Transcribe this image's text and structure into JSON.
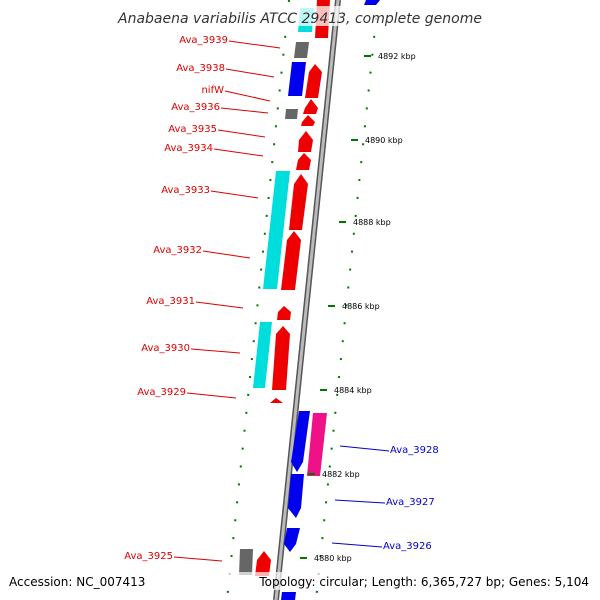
{
  "title": "Anabaena variabilis ATCC 29413, complete genome",
  "footer": {
    "accession": "Accession: NC_007413",
    "topology": "Topology: circular; Length: 6,365,727 bp; Genes: 5,104"
  },
  "colors": {
    "backbone": "#888888",
    "forward_label": "#dd0000",
    "reverse_label": "#0000cc",
    "tick_mark": "#007700",
    "gc_dots": "#007700",
    "red_gene": "#ee0000",
    "cyan_feature": "#00dddd",
    "blue_gene": "#0000ee",
    "grey_gene": "#666666",
    "magenta_feature": "#ee1188"
  },
  "ticks": [
    {
      "label": "4892 kbp"
    },
    {
      "label": "4890 kbp"
    },
    {
      "label": "4888 kbp"
    },
    {
      "label": "4886 kbp"
    },
    {
      "label": "4884 kbp"
    },
    {
      "label": "4882 kbp"
    },
    {
      "label": "4880 kbp"
    }
  ],
  "gene_labels": [
    {
      "text": "Ava_3939",
      "strand": "forward"
    },
    {
      "text": "Ava_3938",
      "strand": "forward"
    },
    {
      "text": "nifW",
      "strand": "forward"
    },
    {
      "text": "Ava_3936",
      "strand": "forward"
    },
    {
      "text": "Ava_3935",
      "strand": "forward"
    },
    {
      "text": "Ava_3934",
      "strand": "forward"
    },
    {
      "text": "Ava_3933",
      "strand": "forward"
    },
    {
      "text": "Ava_3932",
      "strand": "forward"
    },
    {
      "text": "Ava_3931",
      "strand": "forward"
    },
    {
      "text": "Ava_3930",
      "strand": "forward"
    },
    {
      "text": "Ava_3929",
      "strand": "forward"
    },
    {
      "text": "Ava_3928",
      "strand": "reverse"
    },
    {
      "text": "Ava_3927",
      "strand": "reverse"
    },
    {
      "text": "Ava_3926",
      "strand": "reverse"
    },
    {
      "text": "Ava_3925",
      "strand": "forward"
    }
  ]
}
